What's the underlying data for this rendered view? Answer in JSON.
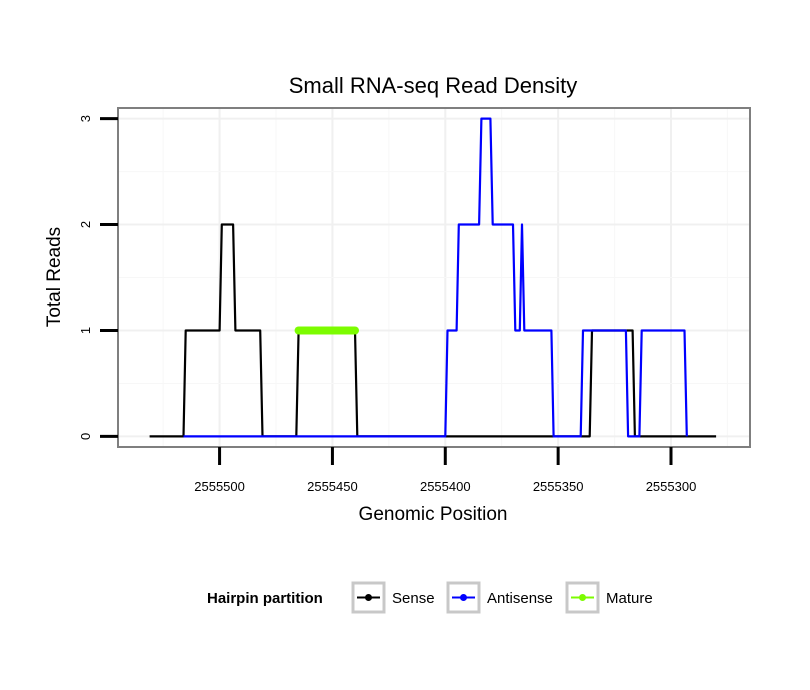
{
  "chart_data": {
    "type": "line",
    "title": "Small RNA-seq Read Density",
    "xlabel": "Genomic Position",
    "ylabel": "Total Reads",
    "x_reversed": true,
    "xlim": [
      2555545,
      2555265
    ],
    "ylim": [
      -0.1,
      3.1
    ],
    "xticks": [
      2555500,
      2555450,
      2555400,
      2555350,
      2555300
    ],
    "xtick_labels": [
      "2555500",
      "2555450",
      "2555400",
      "2555350",
      "2555300"
    ],
    "yticks": [
      0,
      1,
      2,
      3
    ],
    "ytick_labels": [
      "0",
      "1",
      "2",
      "3"
    ],
    "grid": true,
    "legend": {
      "title": "Hairpin partition",
      "position": "bottom",
      "entries": [
        "Sense",
        "Antisense",
        "Mature"
      ]
    },
    "series": [
      {
        "name": "Sense",
        "color": "#000000",
        "points": [
          [
            2555531,
            0
          ],
          [
            2555516,
            0
          ],
          [
            2555515,
            1
          ],
          [
            2555500,
            1
          ],
          [
            2555499,
            2
          ],
          [
            2555494,
            2
          ],
          [
            2555493,
            1
          ],
          [
            2555482,
            1
          ],
          [
            2555481,
            0
          ],
          [
            2555466,
            0
          ],
          [
            2555465,
            1
          ],
          [
            2555440,
            1
          ],
          [
            2555439,
            0
          ],
          [
            2555336,
            0
          ],
          [
            2555335,
            1
          ],
          [
            2555317,
            1
          ],
          [
            2555316,
            0
          ],
          [
            2555280,
            0
          ]
        ]
      },
      {
        "name": "Antisense",
        "color": "#0000ff",
        "points": [
          [
            2555516,
            0
          ],
          [
            2555400,
            0
          ],
          [
            2555399,
            1
          ],
          [
            2555395,
            1
          ],
          [
            2555394,
            2
          ],
          [
            2555385,
            2
          ],
          [
            2555384,
            3
          ],
          [
            2555380,
            3
          ],
          [
            2555379,
            2
          ],
          [
            2555370,
            2
          ],
          [
            2555369,
            1
          ],
          [
            2555367,
            1
          ],
          [
            2555366,
            2
          ],
          [
            2555365,
            1
          ],
          [
            2555353,
            1
          ],
          [
            2555352,
            0
          ],
          [
            2555340,
            0
          ],
          [
            2555339,
            1
          ],
          [
            2555320,
            1
          ],
          [
            2555319,
            0
          ],
          [
            2555314,
            0
          ],
          [
            2555313,
            1
          ],
          [
            2555294,
            1
          ],
          [
            2555293,
            0
          ]
        ]
      },
      {
        "name": "Mature",
        "color": "#7cfc00",
        "points": [
          [
            2555465,
            1
          ],
          [
            2555440,
            1
          ]
        ]
      }
    ]
  }
}
